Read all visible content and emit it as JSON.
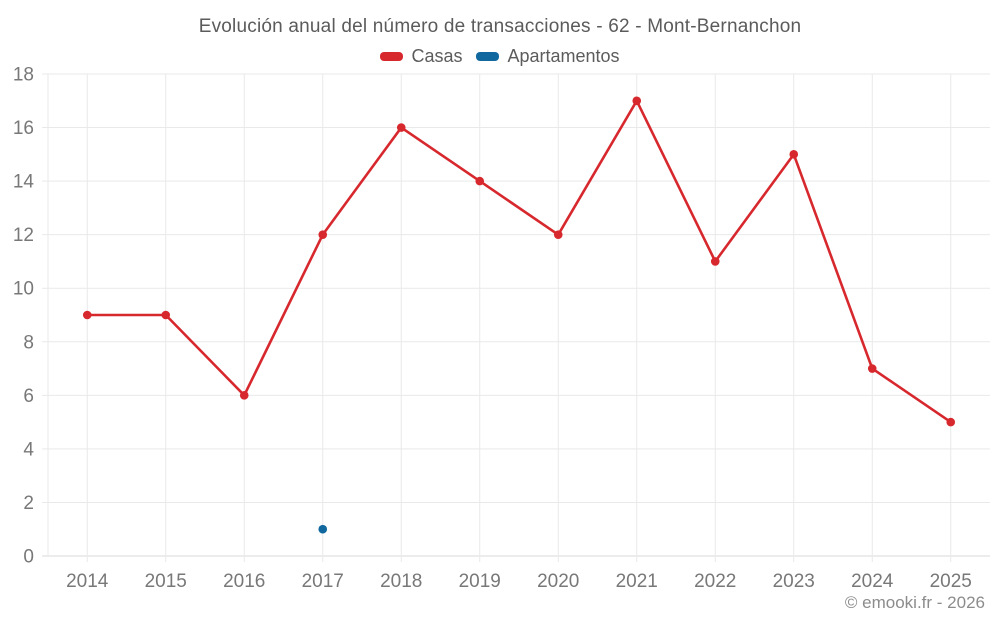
{
  "header": {
    "title": "Evolución anual del número de transacciones - 62 - Mont-Bernanchon"
  },
  "legend": [
    {
      "label": "Casas",
      "color": "#d7282e"
    },
    {
      "label": "Apartamentos",
      "color": "#10689f"
    }
  ],
  "footer": {
    "attribution": "© emooki.fr - 2026"
  },
  "chart_data": {
    "type": "line",
    "title": "Evolución anual del número de transacciones - 62 - Mont-Bernanchon",
    "categories": [
      "2014",
      "2015",
      "2016",
      "2017",
      "2018",
      "2019",
      "2020",
      "2021",
      "2022",
      "2023",
      "2024",
      "2025"
    ],
    "series": [
      {
        "name": "Casas",
        "color": "#d7282e",
        "values": [
          9,
          9,
          6,
          12,
          16,
          14,
          12,
          17,
          11,
          15,
          7,
          5
        ]
      },
      {
        "name": "Apartamentos",
        "color": "#10689f",
        "values": [
          null,
          null,
          null,
          1,
          null,
          null,
          null,
          null,
          null,
          null,
          null,
          null
        ]
      }
    ],
    "xlabel": "",
    "ylabel": "",
    "ylim": [
      0,
      18
    ],
    "ytick_step": 2,
    "grid": true,
    "legend_position": "top",
    "colors": {
      "gridline": "#e9e9e9",
      "axis_line": "#dadada",
      "axis_label": "#787878"
    }
  }
}
